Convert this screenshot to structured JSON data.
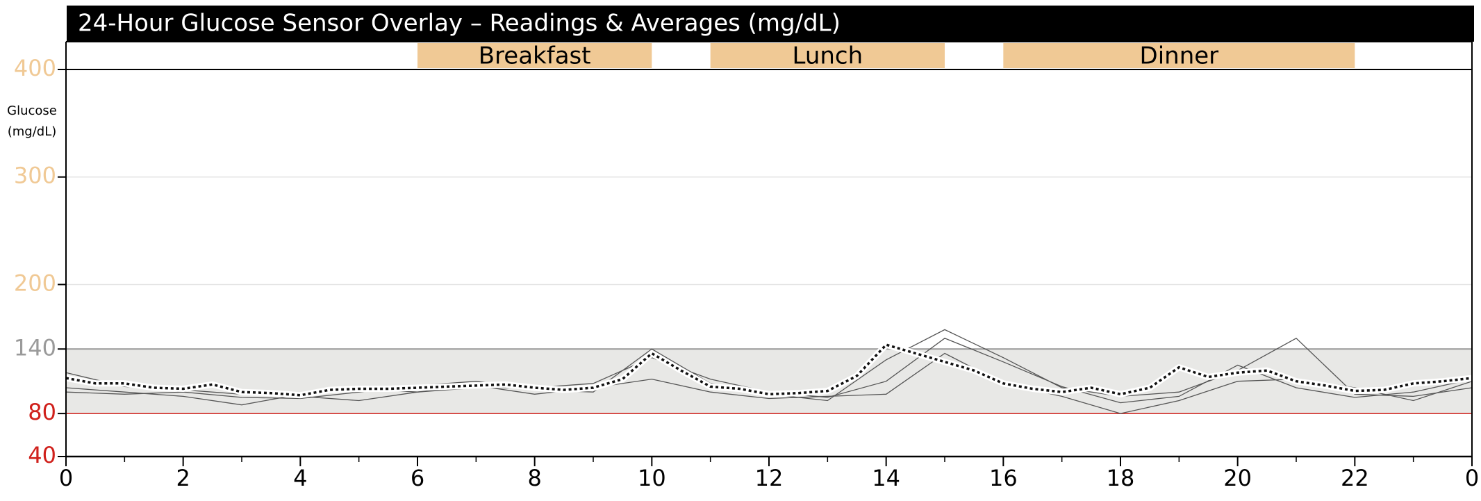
{
  "chart_data": {
    "type": "line",
    "title": "24-Hour Glucose Sensor Overlay – Readings & Averages (mg/dL)",
    "ylabel": [
      "Glucose",
      "(mg/dL)"
    ],
    "xlim": [
      0,
      24
    ],
    "xticks": [
      0,
      2,
      4,
      6,
      8,
      10,
      12,
      14,
      16,
      18,
      20,
      22,
      {
        "value": 24,
        "label": "0"
      }
    ],
    "x_minor_ticks": [
      1,
      3,
      5,
      7,
      9,
      11,
      13,
      15,
      17,
      19,
      21,
      23
    ],
    "ylim": [
      40,
      400
    ],
    "yticks": [
      40,
      80,
      140,
      200,
      300,
      400
    ],
    "ytick_colors": [
      "#d0201b",
      "#d0201b",
      "#9a9a9a",
      "#f0c995",
      "#f0c995",
      "#f0c995"
    ],
    "grid": true,
    "target_range": [
      80,
      140
    ],
    "target_color": "#e8e8e6",
    "low_line_color": "#d0201b",
    "meal_color": "#f0c995",
    "meals": [
      {
        "label": "Breakfast",
        "start": 6,
        "end": 10
      },
      {
        "label": "Lunch",
        "start": 11,
        "end": 15
      },
      {
        "label": "Dinner",
        "start": 16,
        "end": 22
      }
    ],
    "series": [
      {
        "color": "#555555",
        "style": "solid",
        "x": [
          0,
          1,
          2,
          3,
          4,
          5,
          6,
          7,
          8,
          9,
          10,
          11,
          12,
          13,
          14,
          15,
          16,
          17,
          18,
          19,
          20,
          21,
          22,
          23,
          24
        ],
        "values": [
          118,
          105,
          102,
          98,
          96,
          92,
          100,
          104,
          104,
          108,
          132,
          112,
          100,
          95,
          110,
          150,
          128,
          105,
          90,
          96,
          125,
          104,
          95,
          100,
          112
        ]
      },
      {
        "color": "#555555",
        "style": "solid",
        "x": [
          0,
          1,
          2,
          3,
          4,
          5,
          6,
          7,
          8,
          9,
          10,
          11,
          12,
          13,
          14,
          15,
          16,
          17,
          18,
          19,
          20,
          21,
          22,
          23,
          24
        ],
        "values": [
          100,
          98,
          100,
          95,
          94,
          100,
          106,
          110,
          102,
          100,
          140,
          108,
          98,
          92,
          130,
          158,
          132,
          104,
          96,
          100,
          120,
          150,
          98,
          96,
          104
        ]
      },
      {
        "color": "#555555",
        "style": "solid",
        "x": [
          0,
          1,
          2,
          3,
          4,
          5,
          6,
          7,
          8,
          9,
          10,
          11,
          12,
          13,
          14,
          15,
          16,
          17,
          18,
          19,
          20,
          21,
          22,
          23,
          24
        ],
        "values": [
          104,
          100,
          96,
          88,
          98,
          103,
          100,
          106,
          98,
          104,
          112,
          100,
          94,
          96,
          98,
          136,
          108,
          96,
          80,
          92,
          110,
          112,
          104,
          92,
          110
        ]
      },
      {
        "color": "#111111",
        "style": "dotted",
        "x": [
          0,
          0.5,
          1,
          1.5,
          2,
          2.5,
          3,
          3.5,
          4,
          4.5,
          5,
          5.5,
          6,
          6.5,
          7,
          7.5,
          8,
          8.5,
          9,
          9.5,
          10,
          10.5,
          11,
          11.5,
          12,
          12.5,
          13,
          13.5,
          14,
          14.5,
          15,
          15.5,
          16,
          16.5,
          17,
          17.5,
          18,
          18.5,
          19,
          19.5,
          20,
          20.5,
          21,
          21.5,
          22,
          22.5,
          23,
          23.5,
          24
        ],
        "values": [
          113,
          108,
          108,
          104,
          103,
          107,
          100,
          99,
          97,
          102,
          103,
          103,
          104,
          105,
          106,
          107,
          104,
          102,
          104,
          112,
          136,
          120,
          105,
          103,
          98,
          99,
          101,
          115,
          144,
          136,
          128,
          120,
          108,
          103,
          100,
          104,
          98,
          104,
          123,
          114,
          118,
          120,
          110,
          106,
          101,
          102,
          108,
          110,
          113
        ]
      }
    ]
  }
}
